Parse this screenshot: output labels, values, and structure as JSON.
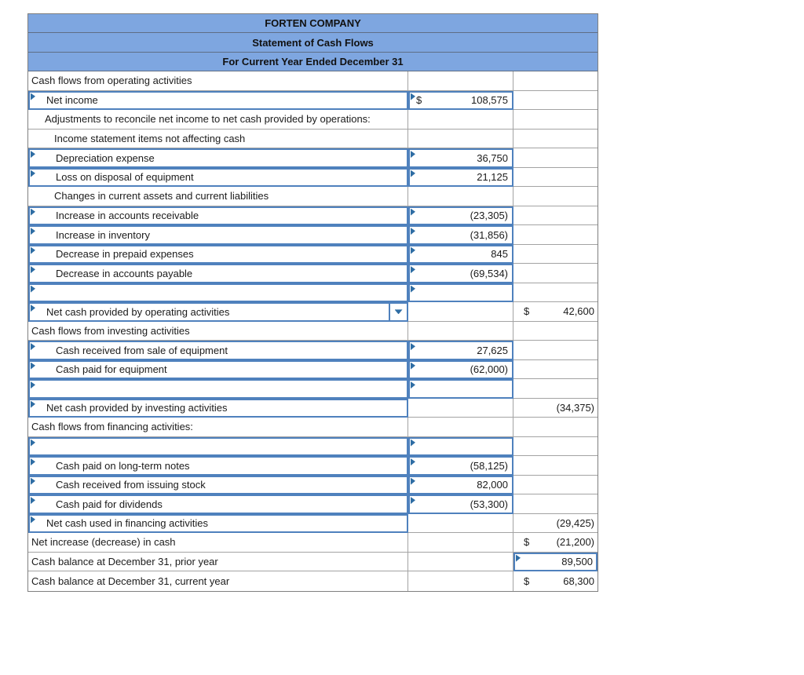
{
  "header": {
    "line1": "FORTEN COMPANY",
    "line2": "Statement of Cash Flows",
    "line3": "For Current Year Ended December 31"
  },
  "colors": {
    "header_bg": "#7ea6e0",
    "input_border": "#4f81bd",
    "marker": "#2e6da4",
    "grid": "#a3a3a3",
    "total_border": "#2e2e2e"
  },
  "icons": {
    "dropdown": "chevron-down-icon",
    "input_marker": "corner-flag-icon"
  },
  "table": {
    "columns": [
      "label",
      "amount_inner",
      "amount_outer"
    ],
    "rows": [
      {
        "label": "Cash flows from operating activities",
        "indent": 0,
        "label_input": false,
        "dropdown": false,
        "col2": {
          "input": false,
          "prefix": "",
          "value": ""
        },
        "col3": {
          "input": false,
          "prefix": "",
          "value": "",
          "total": false
        }
      },
      {
        "label": "Net income",
        "indent": 1,
        "label_input": true,
        "dropdown": false,
        "col2": {
          "input": true,
          "prefix": "$",
          "value": "108,575"
        },
        "col3": {
          "input": false,
          "prefix": "",
          "value": "",
          "total": false
        }
      },
      {
        "label": "Adjustments to reconcile net income to net cash provided by operations:",
        "indent": 1,
        "label_input": false,
        "dropdown": false,
        "col2": {
          "input": false,
          "prefix": "",
          "value": ""
        },
        "col3": {
          "input": false,
          "prefix": "",
          "value": "",
          "total": false
        }
      },
      {
        "label": "Income statement items not affecting cash",
        "indent": 2,
        "label_input": false,
        "dropdown": false,
        "col2": {
          "input": false,
          "prefix": "",
          "value": ""
        },
        "col3": {
          "input": false,
          "prefix": "",
          "value": "",
          "total": false
        }
      },
      {
        "label": "Depreciation expense",
        "indent": 2,
        "label_input": true,
        "dropdown": false,
        "col2": {
          "input": true,
          "prefix": "",
          "value": "36,750"
        },
        "col3": {
          "input": false,
          "prefix": "",
          "value": "",
          "total": false
        }
      },
      {
        "label": "Loss on disposal of equipment",
        "indent": 2,
        "label_input": true,
        "dropdown": false,
        "col2": {
          "input": true,
          "prefix": "",
          "value": "21,125"
        },
        "col3": {
          "input": false,
          "prefix": "",
          "value": "",
          "total": false
        }
      },
      {
        "label": "Changes in current assets and current liabilities",
        "indent": 2,
        "label_input": false,
        "dropdown": false,
        "col2": {
          "input": false,
          "prefix": "",
          "value": ""
        },
        "col3": {
          "input": false,
          "prefix": "",
          "value": "",
          "total": false
        }
      },
      {
        "label": "Increase in accounts receivable",
        "indent": 2,
        "label_input": true,
        "dropdown": false,
        "col2": {
          "input": true,
          "prefix": "",
          "value": "(23,305)"
        },
        "col3": {
          "input": false,
          "prefix": "",
          "value": "",
          "total": false
        }
      },
      {
        "label": "Increase in inventory",
        "indent": 2,
        "label_input": true,
        "dropdown": false,
        "col2": {
          "input": true,
          "prefix": "",
          "value": "(31,856)"
        },
        "col3": {
          "input": false,
          "prefix": "",
          "value": "",
          "total": false
        }
      },
      {
        "label": "Decrease in prepaid expenses",
        "indent": 2,
        "label_input": true,
        "dropdown": false,
        "col2": {
          "input": true,
          "prefix": "",
          "value": "845"
        },
        "col3": {
          "input": false,
          "prefix": "",
          "value": "",
          "total": false
        }
      },
      {
        "label": "Decrease in accounts payable",
        "indent": 2,
        "label_input": true,
        "dropdown": false,
        "col2": {
          "input": true,
          "prefix": "",
          "value": "(69,534)"
        },
        "col3": {
          "input": false,
          "prefix": "",
          "value": "",
          "total": false
        }
      },
      {
        "label": "",
        "indent": 1,
        "label_input": true,
        "dropdown": false,
        "col2": {
          "input": true,
          "prefix": "",
          "value": ""
        },
        "col3": {
          "input": false,
          "prefix": "",
          "value": "",
          "total": false
        }
      },
      {
        "label": "Net cash provided by operating activities",
        "indent": 1,
        "label_input": true,
        "dropdown": true,
        "col2": {
          "input": false,
          "prefix": "",
          "value": ""
        },
        "col3": {
          "input": false,
          "prefix": "$",
          "value": "42,600",
          "total": false
        }
      },
      {
        "label": "Cash flows from investing activities",
        "indent": 0,
        "label_input": false,
        "dropdown": false,
        "col2": {
          "input": false,
          "prefix": "",
          "value": ""
        },
        "col3": {
          "input": false,
          "prefix": "",
          "value": "",
          "total": false
        }
      },
      {
        "label": "Cash received from sale of equipment",
        "indent": 2,
        "label_input": true,
        "dropdown": false,
        "col2": {
          "input": true,
          "prefix": "",
          "value": "27,625"
        },
        "col3": {
          "input": false,
          "prefix": "",
          "value": "",
          "total": false
        }
      },
      {
        "label": "Cash paid for equipment",
        "indent": 2,
        "label_input": true,
        "dropdown": false,
        "col2": {
          "input": true,
          "prefix": "",
          "value": "(62,000)"
        },
        "col3": {
          "input": false,
          "prefix": "",
          "value": "",
          "total": false
        }
      },
      {
        "label": "",
        "indent": 1,
        "label_input": true,
        "dropdown": false,
        "col2": {
          "input": true,
          "prefix": "",
          "value": ""
        },
        "col3": {
          "input": false,
          "prefix": "",
          "value": "",
          "total": false
        }
      },
      {
        "label": "Net cash provided by investing activities",
        "indent": 1,
        "label_input": true,
        "dropdown": false,
        "col2": {
          "input": false,
          "prefix": "",
          "value": ""
        },
        "col3": {
          "input": false,
          "prefix": "",
          "value": "(34,375)",
          "total": false
        }
      },
      {
        "label": "Cash flows from financing activities:",
        "indent": 0,
        "label_input": false,
        "dropdown": false,
        "col2": {
          "input": false,
          "prefix": "",
          "value": ""
        },
        "col3": {
          "input": false,
          "prefix": "",
          "value": "",
          "total": false
        }
      },
      {
        "label": "",
        "indent": 1,
        "label_input": true,
        "dropdown": false,
        "col2": {
          "input": true,
          "prefix": "",
          "value": ""
        },
        "col3": {
          "input": false,
          "prefix": "",
          "value": "",
          "total": false
        }
      },
      {
        "label": "Cash paid on long-term notes",
        "indent": 2,
        "label_input": true,
        "dropdown": false,
        "col2": {
          "input": true,
          "prefix": "",
          "value": "(58,125)"
        },
        "col3": {
          "input": false,
          "prefix": "",
          "value": "",
          "total": false
        }
      },
      {
        "label": "Cash received from issuing stock",
        "indent": 2,
        "label_input": true,
        "dropdown": false,
        "col2": {
          "input": true,
          "prefix": "",
          "value": "82,000"
        },
        "col3": {
          "input": false,
          "prefix": "",
          "value": "",
          "total": false
        }
      },
      {
        "label": "Cash paid for dividends",
        "indent": 2,
        "label_input": true,
        "dropdown": false,
        "col2": {
          "input": true,
          "prefix": "",
          "value": "(53,300)"
        },
        "col3": {
          "input": false,
          "prefix": "",
          "value": "",
          "total": false
        }
      },
      {
        "label": "Net cash used in financing activities",
        "indent": 1,
        "label_input": true,
        "dropdown": false,
        "col2": {
          "input": false,
          "prefix": "",
          "value": ""
        },
        "col3": {
          "input": false,
          "prefix": "",
          "value": "(29,425)",
          "total": false
        }
      },
      {
        "label": "Net increase (decrease) in cash",
        "indent": 0,
        "label_input": false,
        "dropdown": false,
        "col2": {
          "input": false,
          "prefix": "",
          "value": ""
        },
        "col3": {
          "input": false,
          "prefix": "$",
          "value": "(21,200)",
          "total": false
        }
      },
      {
        "label": "Cash balance at December 31, prior year",
        "indent": 0,
        "label_input": false,
        "dropdown": false,
        "col2": {
          "input": false,
          "prefix": "",
          "value": ""
        },
        "col3": {
          "input": true,
          "prefix": "",
          "value": "89,500",
          "total": false
        }
      },
      {
        "label": "Cash balance at December 31, current year",
        "indent": 0,
        "label_input": false,
        "dropdown": false,
        "col2": {
          "input": false,
          "prefix": "",
          "value": ""
        },
        "col3": {
          "input": false,
          "prefix": "$",
          "value": "68,300",
          "total": true
        }
      }
    ]
  }
}
